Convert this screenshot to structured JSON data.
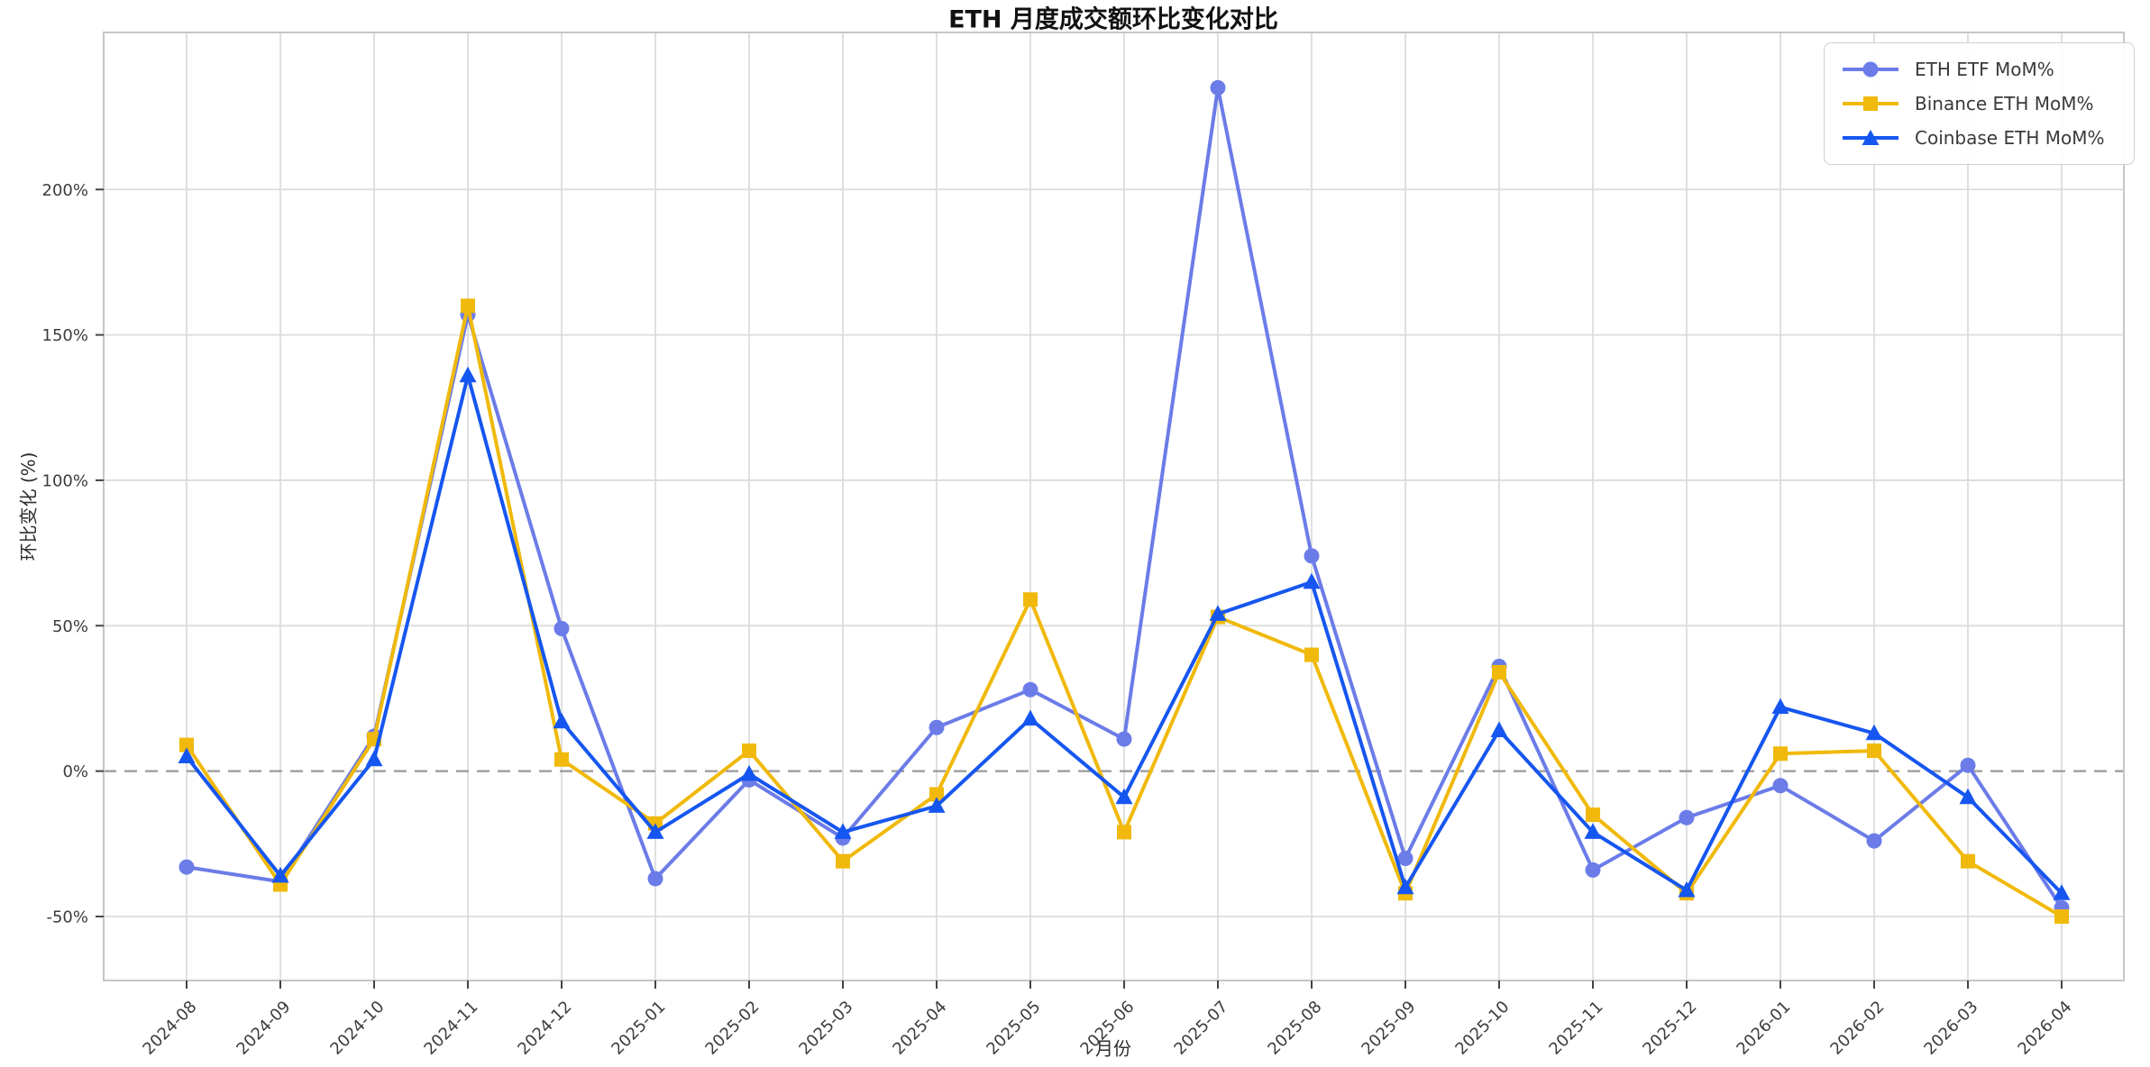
{
  "chart_data": {
    "type": "line",
    "title": "ETH 月度成交额环比变化对比",
    "xlabel": "月份",
    "ylabel": "环比变化 (%)",
    "categories": [
      "2024-08",
      "2024-09",
      "2024-10",
      "2024-11",
      "2024-12",
      "2025-01",
      "2025-02",
      "2025-03",
      "2025-04",
      "2025-05",
      "2025-06",
      "2025-07",
      "2025-08",
      "2025-09",
      "2025-10",
      "2025-11",
      "2025-12",
      "2026-01",
      "2026-02",
      "2026-03",
      "2026-04"
    ],
    "series": [
      {
        "name": "ETH ETF MoM%",
        "marker": "circle",
        "color": "#6b7ce8",
        "values": [
          -33,
          -38,
          12,
          157,
          49,
          -37,
          -3,
          -23,
          15,
          28,
          11,
          235,
          74,
          -30,
          36,
          -34,
          -16,
          -5,
          -24,
          2,
          -47
        ]
      },
      {
        "name": "Binance ETH MoM%",
        "marker": "square",
        "color": "#f0b90b",
        "values": [
          9,
          -39,
          11,
          160,
          4,
          -18,
          7,
          -31,
          -8,
          59,
          -21,
          53,
          40,
          -42,
          34,
          -15,
          -42,
          6,
          7,
          -31,
          -50
        ]
      },
      {
        "name": "Coinbase ETH MoM%",
        "marker": "triangle",
        "color": "#1656f0",
        "values": [
          5,
          -36,
          4,
          136,
          17,
          -21,
          -1,
          -21,
          -12,
          18,
          -9,
          54,
          65,
          -40,
          14,
          -21,
          -41,
          22,
          13,
          -9,
          -42
        ]
      }
    ],
    "y_ticks": [
      "-50%",
      "0%",
      "50%",
      "100%",
      "150%",
      "200%"
    ],
    "y_tick_values": [
      -50,
      0,
      50,
      100,
      150,
      200
    ],
    "ylim": [
      -72,
      254
    ],
    "grid": "on",
    "zero_line": "dashed",
    "legend_position": "upper right"
  },
  "style": {
    "grid_color": "#dcdcdc",
    "spine_color": "#c6c6c6",
    "zero_line_color": "#9e9e9e",
    "tick_text_color": "#3c3c3c",
    "legend_text_color": "#3a3a3a"
  }
}
